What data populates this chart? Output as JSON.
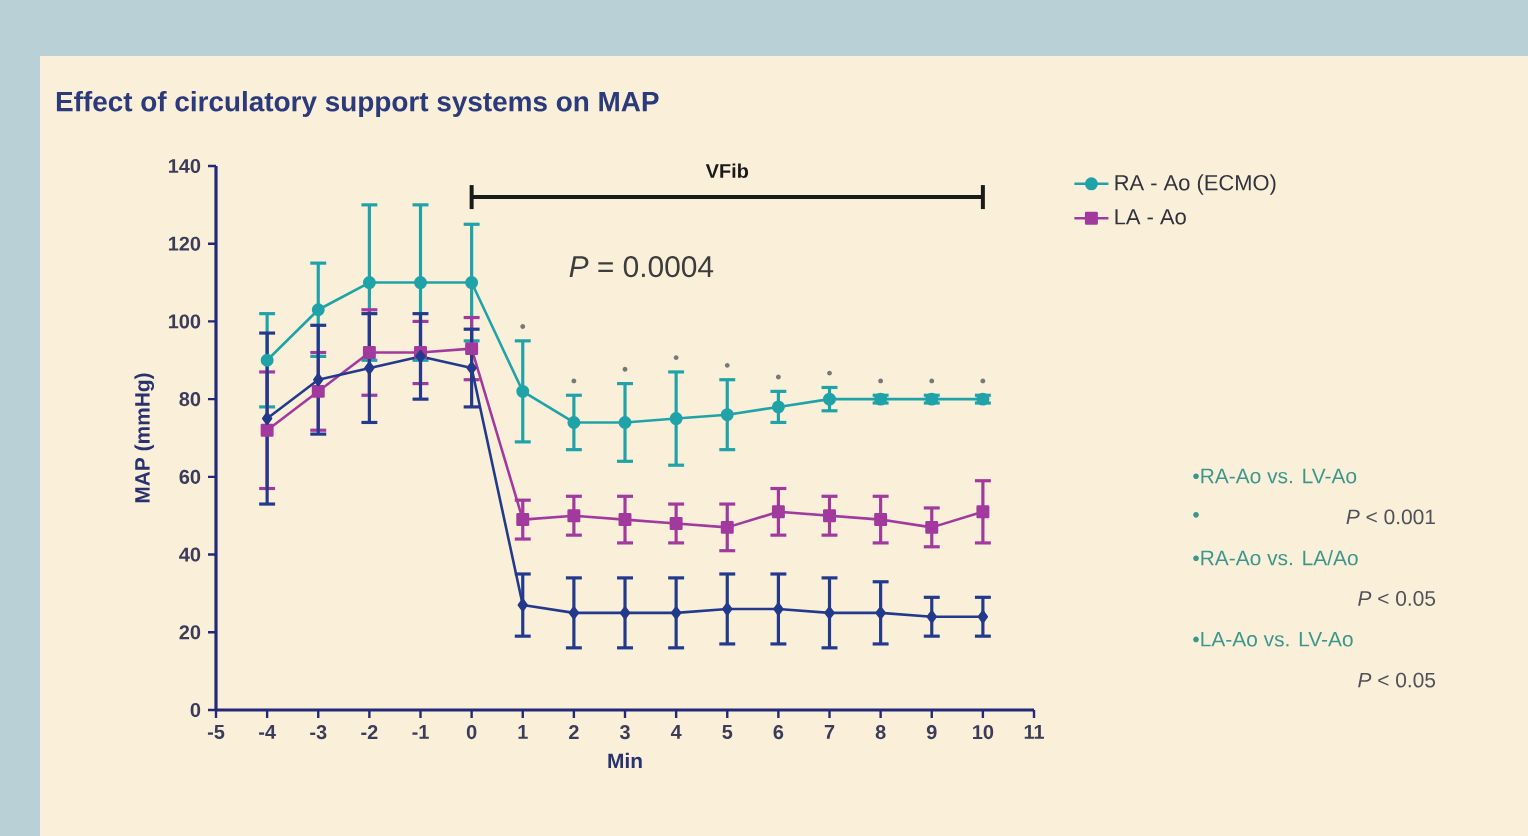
{
  "chart_data": {
    "type": "line",
    "title": "Effect of circulatory support systems on MAP",
    "xlabel": "Min",
    "ylabel": "MAP (mmHg)",
    "x": [
      -4,
      -3,
      -2,
      -1,
      0,
      1,
      2,
      3,
      4,
      5,
      6,
      7,
      8,
      9,
      10
    ],
    "series": [
      {
        "name": "RA - Ao (ECMO)",
        "color": "#1fa3a8",
        "marker": "circle",
        "values": [
          90,
          103,
          110,
          110,
          110,
          82,
          74,
          74,
          75,
          76,
          78,
          80,
          80,
          80,
          80
        ],
        "errors": [
          12,
          12,
          20,
          20,
          15,
          13,
          7,
          10,
          12,
          9,
          4,
          3,
          1,
          1,
          1
        ]
      },
      {
        "name": "LA - Ao",
        "color": "#a23a9e",
        "marker": "square",
        "values": [
          72,
          82,
          92,
          92,
          93,
          49,
          50,
          49,
          48,
          47,
          51,
          50,
          49,
          47,
          51
        ],
        "errors": [
          15,
          10,
          11,
          8,
          8,
          5,
          5,
          6,
          5,
          6,
          6,
          5,
          6,
          5,
          8
        ]
      },
      {
        "type": "line",
        "name": "VFib",
        "color": "#1a1a1a",
        "marker": "none",
        "x": [
          0,
          10
        ],
        "values": [
          132,
          132
        ]
      },
      {
        "color": "#233a8c",
        "marker": "diamond",
        "values": [
          75,
          85,
          88,
          91,
          88,
          27,
          25,
          25,
          25,
          26,
          26,
          25,
          25,
          24,
          24
        ],
        "errors": [
          22,
          14,
          14,
          11,
          10,
          8,
          9,
          9,
          9,
          9,
          9,
          9,
          8,
          5,
          5
        ]
      }
    ],
    "xlim": [
      -5,
      11
    ],
    "xticks": [
      -5,
      -4,
      -3,
      -2,
      -1,
      0,
      1,
      2,
      3,
      4,
      5,
      6,
      7,
      8,
      9,
      10,
      11
    ],
    "ylim": [
      0,
      140
    ],
    "yticks": [
      0,
      20,
      40,
      60,
      80,
      100,
      120,
      140
    ],
    "grid": false,
    "legend": "top right",
    "annotations": [
      "*P* = 0.0004",
      "•",
      "•",
      "•",
      "•",
      "•",
      "•",
      "•",
      "•",
      "•",
      "•",
      "•RA-Ao vs. LV-Ao",
      "•",
      "*P* < 0.001",
      "•RA-Ao vs. LA/Ao",
      "*P* < 0.05",
      "•LA-Ao vs. LV-Ao",
      "*P* < 0.05"
    ]
  }
}
